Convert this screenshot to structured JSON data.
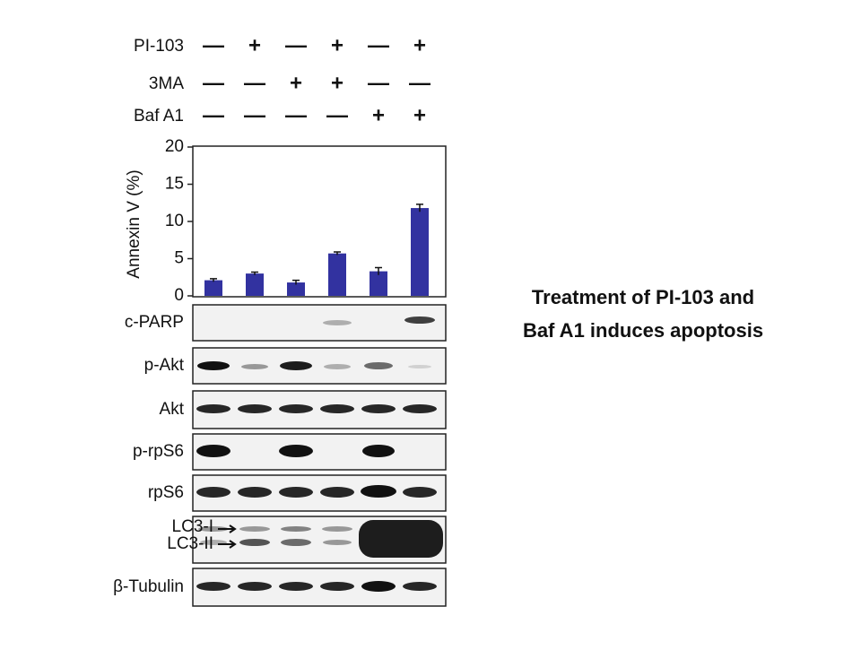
{
  "caption": [
    "Treatment of PI-103 and",
    "Baf A1 induces apoptosis"
  ],
  "treatments": [
    {
      "name": "PI-103",
      "signs": [
        "—",
        "+",
        "—",
        "+",
        "—",
        "+"
      ]
    },
    {
      "name": "3MA",
      "signs": [
        "—",
        "—",
        "+",
        "+",
        "—",
        "—"
      ]
    },
    {
      "name": "Baf A1",
      "signs": [
        "—",
        "—",
        "—",
        "—",
        "+",
        "+"
      ]
    }
  ],
  "chart_data": {
    "type": "bar",
    "ylabel": "Annexin V (%)",
    "values": [
      2.1,
      3.0,
      1.8,
      5.7,
      3.3,
      11.8
    ],
    "errors": [
      0.2,
      0.2,
      0.3,
      0.2,
      0.5,
      0.5
    ],
    "color": "#3232a0",
    "ylim": [
      0,
      20
    ],
    "yticks": [
      0,
      5,
      10,
      15,
      20
    ]
  },
  "blots": [
    "c-PARP",
    "p-Akt",
    "Akt",
    "p-rpS6",
    "rpS6",
    "LC3-I",
    "LC3-II",
    "β-Tubulin"
  ]
}
